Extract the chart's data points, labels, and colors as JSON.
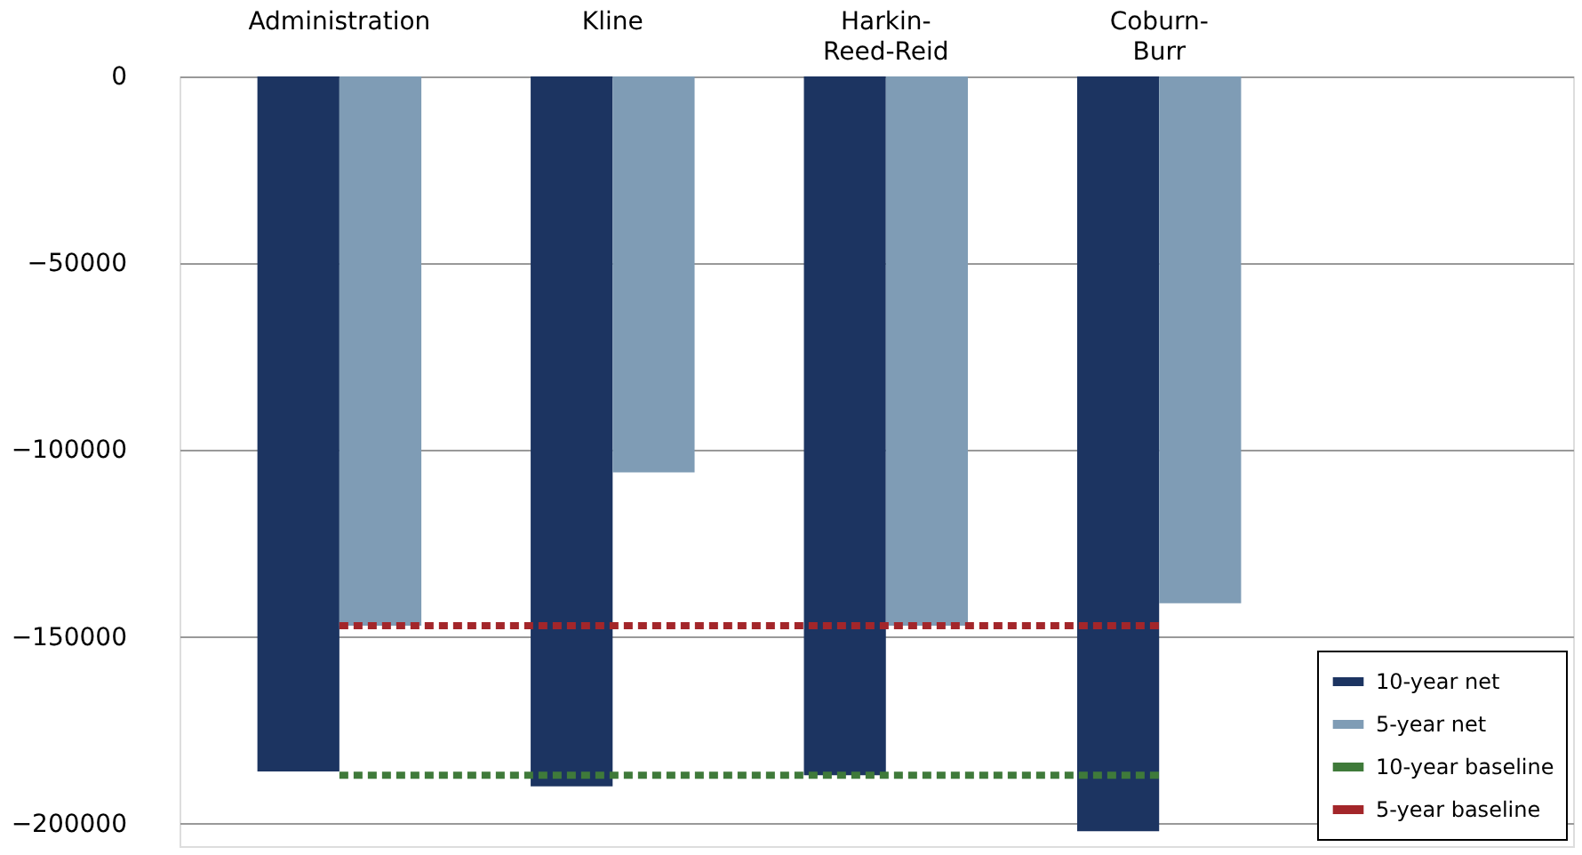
{
  "chart_data": {
    "type": "bar",
    "categories": [
      "Administration",
      "Kline",
      "Harkin-Reed-Reid",
      "Coburn-Burr"
    ],
    "series": [
      {
        "name": "10-year net",
        "color": "#1c3461",
        "values": [
          -186000,
          -190000,
          -187000,
          -202000
        ]
      },
      {
        "name": "5-year net",
        "color": "#7f9cb5",
        "values": [
          -147000,
          -106000,
          -147000,
          -141000
        ]
      },
      {
        "name": "10-year baseline",
        "color": "#3f7a3a",
        "type": "line",
        "line_style": "dotted",
        "values": [
          -187000,
          -187000,
          -187000,
          -187000
        ]
      },
      {
        "name": "5-year baseline",
        "color": "#a3262a",
        "type": "line",
        "line_style": "dotted",
        "values": [
          -147000,
          -147000,
          -147000,
          -147000
        ]
      }
    ],
    "ylim": [
      -206000,
      0
    ],
    "yticks": [
      0,
      -50000,
      -100000,
      -150000,
      -200000
    ],
    "grid": "y",
    "legend": "bottom right",
    "marker": "none"
  }
}
